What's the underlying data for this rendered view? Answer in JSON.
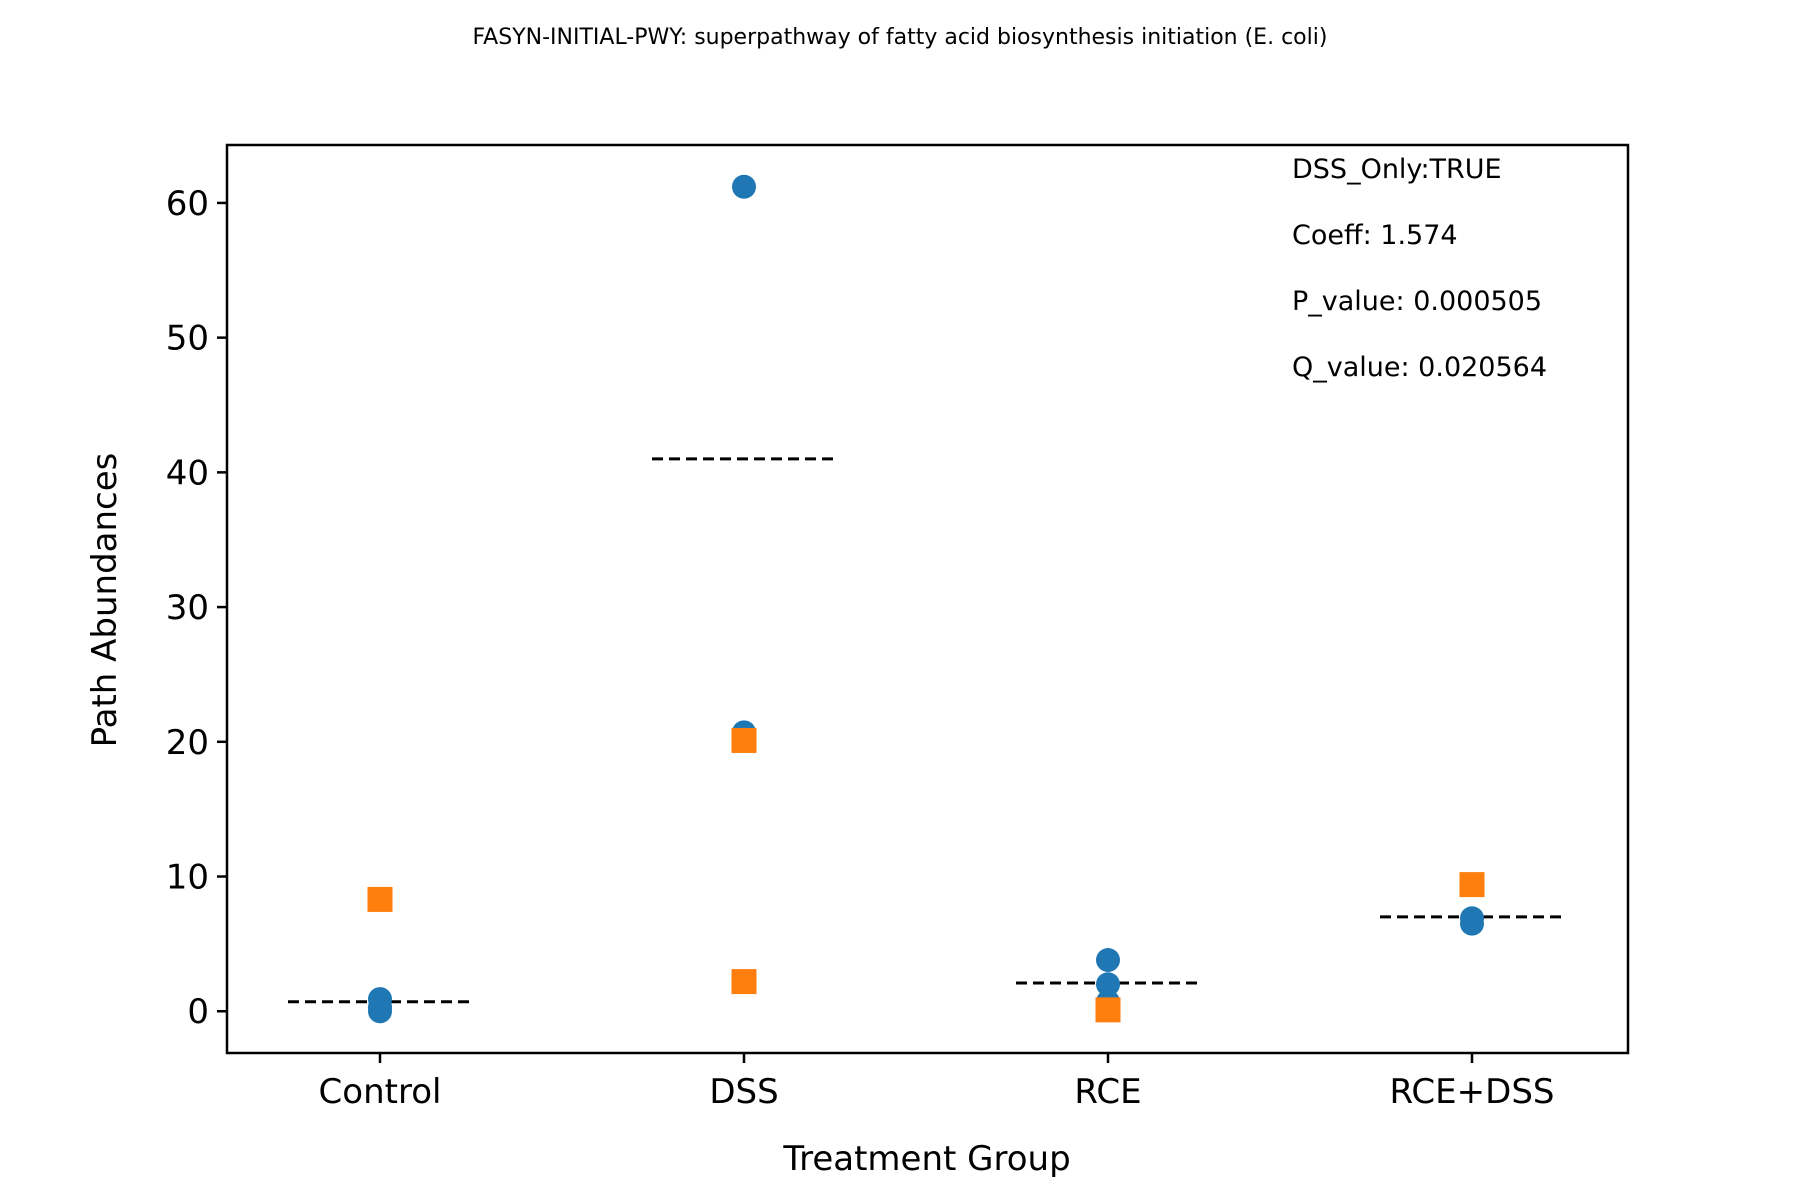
{
  "chart_data": {
    "type": "scatter",
    "title": "FASYN-INITIAL-PWY: superpathway of fatty acid biosynthesis initiation (E. coli)",
    "xlabel": "Treatment Group",
    "ylabel": "Path Abundances",
    "categories": [
      "Control",
      "DSS",
      "RCE",
      "RCE+DSS"
    ],
    "ylim": [
      -3.1,
      64.3
    ],
    "yticks": [
      0,
      10,
      20,
      30,
      40,
      50,
      60
    ],
    "grid": false,
    "series": [
      {
        "marker": "circle",
        "color": "#1f77b4",
        "points": [
          {
            "category": "Control",
            "y": 0.0
          },
          {
            "category": "Control",
            "y": 0.9
          },
          {
            "category": "Control",
            "y": 0.3
          },
          {
            "category": "DSS",
            "y": 61.2
          },
          {
            "category": "DSS",
            "y": 20.7
          },
          {
            "category": "RCE",
            "y": 3.8
          },
          {
            "category": "RCE",
            "y": 2.0
          },
          {
            "category": "RCE",
            "y": 0.7
          },
          {
            "category": "RCE+DSS",
            "y": 6.9
          },
          {
            "category": "RCE+DSS",
            "y": 6.5
          }
        ]
      },
      {
        "marker": "square",
        "color": "#ff7f0e",
        "points": [
          {
            "category": "Control",
            "y": 8.3
          },
          {
            "category": "DSS",
            "y": 20.1
          },
          {
            "category": "DSS",
            "y": 2.2
          },
          {
            "category": "RCE",
            "y": 0.1
          },
          {
            "category": "RCE+DSS",
            "y": 9.4
          }
        ]
      }
    ],
    "group_means": [
      {
        "category": "Control",
        "y": 0.7
      },
      {
        "category": "DSS",
        "y": 41.0
      },
      {
        "category": "RCE",
        "y": 2.1
      },
      {
        "category": "RCE+DSS",
        "y": 7.0
      }
    ],
    "annotations": [
      "DSS_Only:TRUE",
      "Coeff: 1.574",
      "P_value: 0.000505",
      "Q_value: 0.020564"
    ],
    "mean_line_color": "#000000"
  }
}
